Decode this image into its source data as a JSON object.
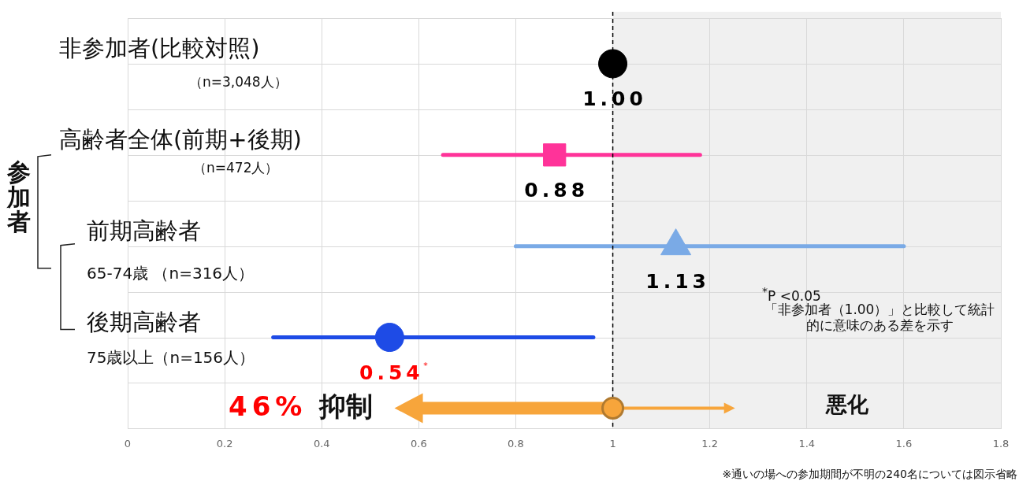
{
  "chart_data": {
    "type": "scatter",
    "orientation": "horizontal",
    "categories": [
      "非参加者(比較対照)\n（n=3,048人）",
      "高齢者全体(前期+後期)\n（n=472人）",
      "前期高齢者\n65-74歳 （n=316人）",
      "後期高齢者\n75歳以上（n=156人）"
    ],
    "series": [
      {
        "color": "#000000",
        "marker": "circle",
        "values": [
          1.0,
          null,
          null,
          null
        ],
        "value_labels": [
          "1.00",
          null,
          null,
          null
        ]
      },
      {
        "color": "#ff3399",
        "marker": "square",
        "values": [
          null,
          0.88,
          null,
          null
        ],
        "errors": [
          null,
          [
            0.65,
            1.18
          ],
          null,
          null
        ],
        "value_labels": [
          null,
          "0.88",
          null,
          null
        ]
      },
      {
        "color": "#7aaae6",
        "marker": "triangle",
        "values": [
          null,
          null,
          1.13,
          null
        ],
        "errors": [
          null,
          null,
          [
            0.8,
            1.6
          ],
          null
        ],
        "value_labels": [
          null,
          null,
          "1.13",
          null
        ]
      },
      {
        "color": "#1e4be6",
        "marker": "circle",
        "values": [
          null,
          null,
          null,
          0.54
        ],
        "errors": [
          null,
          null,
          null,
          [
            0.3,
            0.96
          ]
        ],
        "value_labels": [
          null,
          null,
          null,
          "0.54$^{*}$"
        ]
      }
    ],
    "xlim": [
      0,
      1.8
    ],
    "xticks": [
      0,
      0.2,
      0.4,
      0.6,
      0.8,
      1,
      1.2,
      1.4,
      1.6,
      1.8
    ],
    "grid": true,
    "legend": false,
    "ref_lines": [
      {
        "axis": "x",
        "value": 1,
        "color": "#000000",
        "line_style": "dashed"
      }
    ],
    "bands": [
      {
        "axis": "x",
        "from": 1,
        "to": 1.8,
        "color": "#f0f0f0"
      }
    ],
    "annotations": [
      "参加者",
      "46%",
      "抑制",
      "悪化",
      "$^{*}$P <0.05",
      "「非参加者（1.00）」と比較して統計的に意味のある差を示す",
      "※通いの場への参加期間が不明の240名については図示省略"
    ]
  }
}
